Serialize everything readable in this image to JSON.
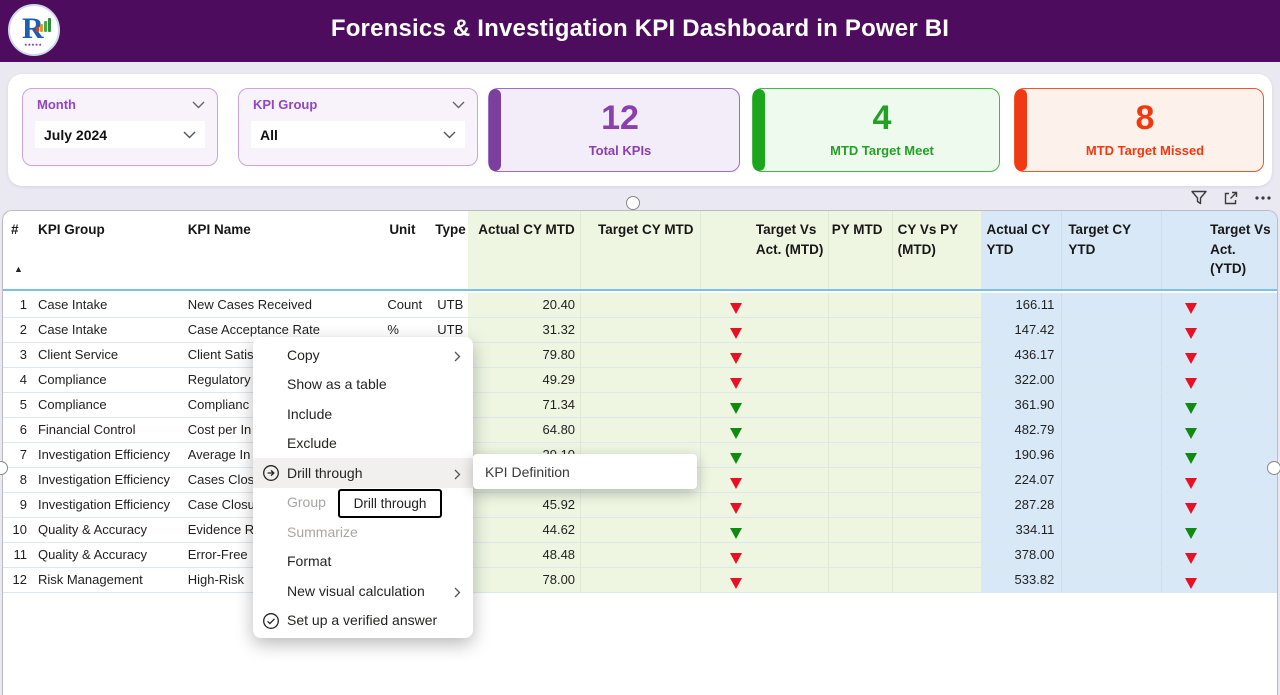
{
  "header": {
    "title": "Forensics & Investigation KPI Dashboard in Power BI"
  },
  "filters": [
    {
      "label": "Month",
      "value": "July 2024"
    },
    {
      "label": "KPI Group",
      "value": "All"
    }
  ],
  "kpi_cards": [
    {
      "value": "12",
      "label": "Total KPIs",
      "accent": "#7d3f9e",
      "border": "#a06cc0",
      "bg": "#f3ecf9",
      "text": "#8b3fb0"
    },
    {
      "value": "4",
      "label": "MTD Target Meet",
      "accent": "#1ea51e",
      "border": "#43b943",
      "bg": "#effaef",
      "text": "#23a123"
    },
    {
      "value": "8",
      "label": "MTD Target Missed",
      "accent": "#f23a12",
      "border": "#f1552a",
      "bg": "#fdf1ec",
      "text": "#f1380f"
    }
  ],
  "table": {
    "columns": [
      "#",
      "KPI Group",
      "KPI Name",
      "Unit",
      "Type",
      "Actual CY MTD",
      "Target CY MTD",
      "Target Vs Act. (MTD)",
      "PY MTD",
      "CY Vs PY (MTD)",
      "Actual CY YTD",
      "Target CY YTD",
      "Target Vs Act. (YTD)"
    ],
    "sort_indicator": "▲",
    "rows": [
      {
        "num": "1",
        "group": "Case Intake",
        "name": "New Cases Received",
        "unit": "Count",
        "type": "UTB",
        "actual_mtd": "20.40",
        "mtd_status": "red",
        "actual_ytd": "166.11",
        "ytd_status": "red"
      },
      {
        "num": "2",
        "group": "Case Intake",
        "name": "Case Acceptance Rate",
        "unit": "%",
        "type": "UTB",
        "actual_mtd": "31.32",
        "mtd_status": "red",
        "actual_ytd": "147.42",
        "ytd_status": "red"
      },
      {
        "num": "3",
        "group": "Client Service",
        "name": "Client Satis",
        "unit": "",
        "type": "",
        "actual_mtd": "79.80",
        "mtd_status": "red",
        "actual_ytd": "436.17",
        "ytd_status": "red"
      },
      {
        "num": "4",
        "group": "Compliance",
        "name": "Regulatory",
        "unit": "",
        "type": "",
        "actual_mtd": "49.29",
        "mtd_status": "red",
        "actual_ytd": "322.00",
        "ytd_status": "red"
      },
      {
        "num": "5",
        "group": "Compliance",
        "name": "Complianc",
        "unit": "",
        "type": "",
        "actual_mtd": "71.34",
        "mtd_status": "green",
        "actual_ytd": "361.90",
        "ytd_status": "green"
      },
      {
        "num": "6",
        "group": "Financial Control",
        "name": "Cost per In",
        "unit": "",
        "type": "",
        "actual_mtd": "64.80",
        "mtd_status": "green",
        "actual_ytd": "482.79",
        "ytd_status": "green"
      },
      {
        "num": "7",
        "group": "Investigation Efficiency",
        "name": "Average In",
        "unit": "",
        "type": "",
        "actual_mtd": "29.10",
        "mtd_status": "green",
        "actual_ytd": "190.96",
        "ytd_status": "green"
      },
      {
        "num": "8",
        "group": "Investigation Efficiency",
        "name": "Cases Clos",
        "unit": "",
        "type": "",
        "actual_mtd": "",
        "mtd_status": "red",
        "actual_ytd": "224.07",
        "ytd_status": "red"
      },
      {
        "num": "9",
        "group": "Investigation Efficiency",
        "name": "Case Closu",
        "unit": "",
        "type": "",
        "actual_mtd": "45.92",
        "mtd_status": "red",
        "actual_ytd": "287.28",
        "ytd_status": "red"
      },
      {
        "num": "10",
        "group": "Quality & Accuracy",
        "name": "Evidence R",
        "unit": "",
        "type": "",
        "actual_mtd": "44.62",
        "mtd_status": "green",
        "actual_ytd": "334.11",
        "ytd_status": "green"
      },
      {
        "num": "11",
        "group": "Quality & Accuracy",
        "name": "Error-Free",
        "unit": "",
        "type": "",
        "actual_mtd": "48.48",
        "mtd_status": "red",
        "actual_ytd": "378.00",
        "ytd_status": "red"
      },
      {
        "num": "12",
        "group": "Risk Management",
        "name": "High-Risk",
        "unit": "",
        "type": "",
        "actual_mtd": "78.00",
        "mtd_status": "red",
        "actual_ytd": "533.82",
        "ytd_status": "red"
      }
    ]
  },
  "context_menu": {
    "items": [
      {
        "label": "Copy",
        "submenu": true
      },
      {
        "label": "Show as a table"
      },
      {
        "label": "Include"
      },
      {
        "label": "Exclude"
      },
      {
        "label": "Drill through",
        "icon": "drill-through-icon",
        "submenu": true,
        "highlighted": true
      },
      {
        "label": "Group",
        "disabled": true
      },
      {
        "label": "Summarize",
        "disabled": true
      },
      {
        "label": "Format"
      },
      {
        "label": "New visual calculation",
        "submenu": true
      },
      {
        "label": "Set up a verified answer",
        "icon": "verified-answer-icon"
      }
    ],
    "submenu_item": "KPI Definition",
    "tooltip": "Drill through"
  },
  "status_colors": {
    "red": "#e81123",
    "green": "#118a11",
    "header_purple": "#4e0c5e"
  }
}
